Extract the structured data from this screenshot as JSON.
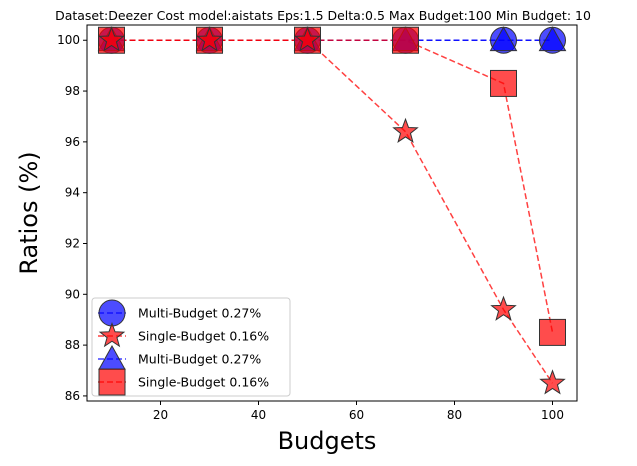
{
  "chart_data": {
    "type": "line",
    "title": "Dataset:Deezer Cost model:aistats Eps:1.5 Delta:0.5 Max Budget:100 Min Budget: 10",
    "xlabel": "Budgets",
    "ylabel": "Ratios (%)",
    "xlim": [
      5,
      105
    ],
    "ylim": [
      85.8,
      100.6
    ],
    "xticks": [
      20,
      40,
      60,
      80,
      100
    ],
    "yticks": [
      86,
      88,
      90,
      92,
      94,
      96,
      98,
      100
    ],
    "grid": false,
    "legend_position": "lower-left",
    "x": [
      10,
      30,
      50,
      70,
      90,
      100
    ],
    "series": [
      {
        "name": "Multi-Budget 0.27%",
        "marker": "circle",
        "color": "#0000ff",
        "line": "dashed",
        "values": [
          100,
          100,
          100,
          100,
          100,
          100
        ]
      },
      {
        "name": "Single-Budget 0.16%",
        "marker": "star",
        "color": "#ff0000",
        "line": "dashed",
        "values": [
          100,
          100,
          100,
          96.4,
          89.4,
          86.5
        ]
      },
      {
        "name": "Multi-Budget 0.27%",
        "marker": "triangle",
        "color": "#0000ff",
        "line": "dashed",
        "values": [
          100,
          100,
          100,
          100,
          100,
          100
        ]
      },
      {
        "name": "Single-Budget 0.16%",
        "marker": "square",
        "color": "#ff0000",
        "line": "dashed",
        "values": [
          100,
          100,
          100,
          100,
          98.3,
          88.5
        ]
      }
    ]
  }
}
